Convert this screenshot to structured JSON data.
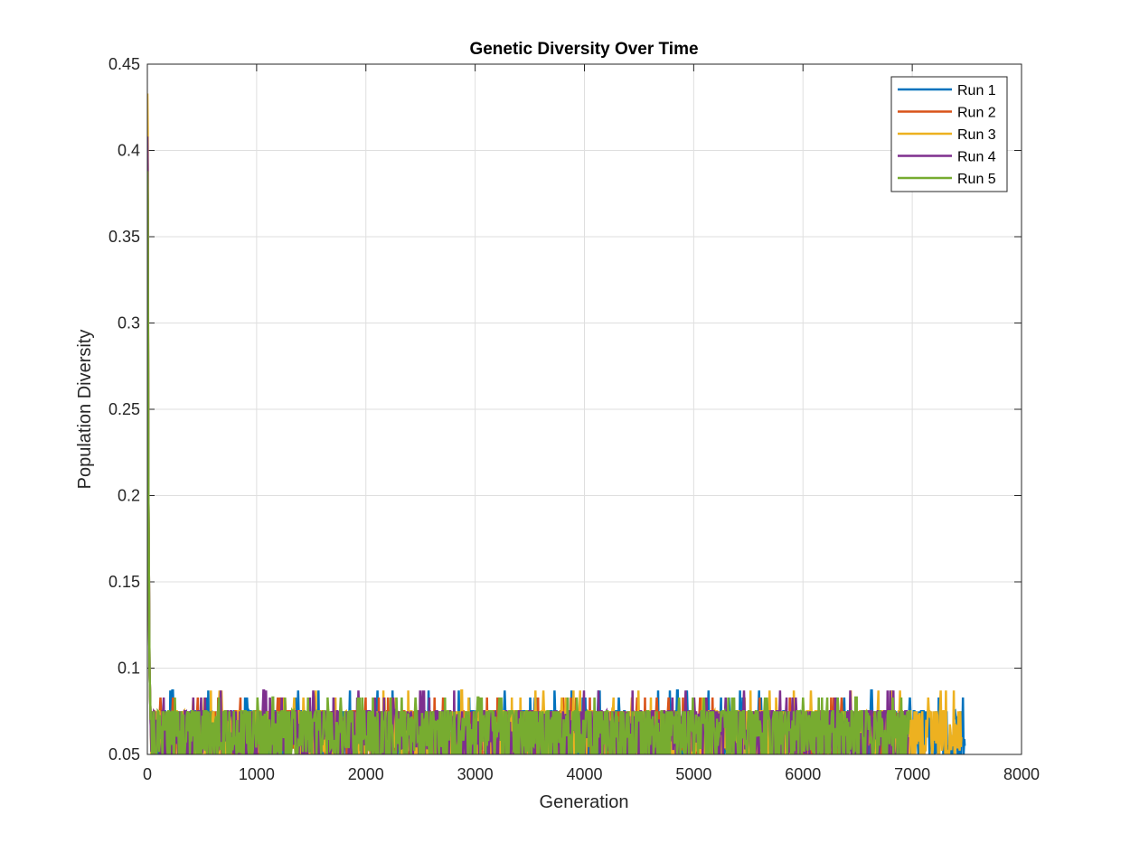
{
  "chart_data": {
    "type": "line",
    "title": "Genetic Diversity Over Time",
    "xlabel": "Generation",
    "ylabel": "Population Diversity",
    "xlim": [
      0,
      8000
    ],
    "ylim": [
      0.05,
      0.45
    ],
    "xticks": [
      "0",
      "1000",
      "2000",
      "3000",
      "4000",
      "5000",
      "6000",
      "7000",
      "8000"
    ],
    "yticks": [
      "0.05",
      "0.1",
      "0.15",
      "0.2",
      "0.25",
      "0.3",
      "0.35",
      "0.4",
      "0.45"
    ],
    "grid": true,
    "legend_position": "top-right",
    "series": [
      {
        "name": "Run 1",
        "color": "#0072BD",
        "end_generation": 7480,
        "start_value": 0.39,
        "noise_base": 0.0625,
        "noise_spread": 0.0125,
        "spike_values": [
          0.083,
          0.087
        ],
        "tail_value": 0.055
      },
      {
        "name": "Run 2",
        "color": "#D95319",
        "end_generation": 6940,
        "start_value": 0.39,
        "noise_base": 0.0625,
        "noise_spread": 0.0125,
        "spike_values": [
          0.083
        ],
        "tail_value": 0.06
      },
      {
        "name": "Run 3",
        "color": "#EDB120",
        "end_generation": 7450,
        "start_value": 0.433,
        "noise_base": 0.0625,
        "noise_spread": 0.0125,
        "spike_values": [
          0.083,
          0.087
        ],
        "tail_value": 0.06
      },
      {
        "name": "Run 4",
        "color": "#7E2F8E",
        "end_generation": 6960,
        "start_value": 0.408,
        "noise_base": 0.0625,
        "noise_spread": 0.0125,
        "spike_values": [
          0.087,
          0.083
        ],
        "tail_value": 0.06
      },
      {
        "name": "Run 5",
        "color": "#77AC30",
        "end_generation": 6980,
        "start_value": 0.388,
        "noise_base": 0.0625,
        "noise_spread": 0.0125,
        "spike_values": [
          0.083
        ],
        "tail_value": 0.07
      }
    ]
  }
}
